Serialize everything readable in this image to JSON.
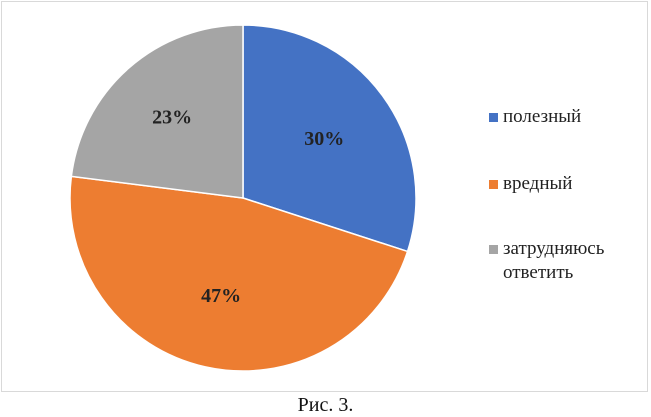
{
  "chart_data": {
    "type": "pie",
    "categories": [
      "полезный",
      "вредный",
      "затрудняюсь ответить"
    ],
    "values": [
      30,
      47,
      23
    ],
    "data_labels": [
      "30%",
      "47%",
      "23%"
    ],
    "colors": [
      "#4472c4",
      "#ed7d31",
      "#a5a5a5"
    ],
    "start_angle_deg": 0,
    "direction": "clockwise",
    "legend_placement": "right",
    "title": ""
  },
  "caption": "Рис. 3."
}
